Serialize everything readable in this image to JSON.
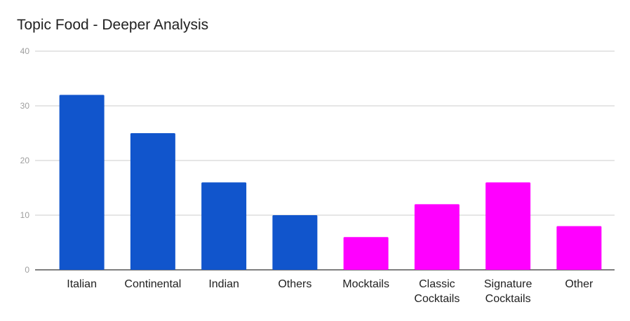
{
  "chart_data": {
    "type": "bar",
    "title": "Topic Food - Deeper Analysis",
    "categories": [
      [
        "Italian"
      ],
      [
        "Continental"
      ],
      [
        "Indian"
      ],
      [
        "Others"
      ],
      [
        "Mocktails"
      ],
      [
        "Classic",
        "Cocktails"
      ],
      [
        "Signature",
        "Cocktails"
      ],
      [
        "Other"
      ]
    ],
    "values": [
      32,
      25,
      16,
      10,
      6,
      12,
      16,
      8
    ],
    "bar_colors": [
      "#1155cc",
      "#1155cc",
      "#1155cc",
      "#1155cc",
      "#ff00ff",
      "#ff00ff",
      "#ff00ff",
      "#ff00ff"
    ],
    "ylim": [
      0,
      40
    ],
    "yticks": [
      0,
      10,
      20,
      30,
      40
    ],
    "xlabel": "",
    "ylabel": "",
    "grid": true,
    "legend": "none"
  }
}
